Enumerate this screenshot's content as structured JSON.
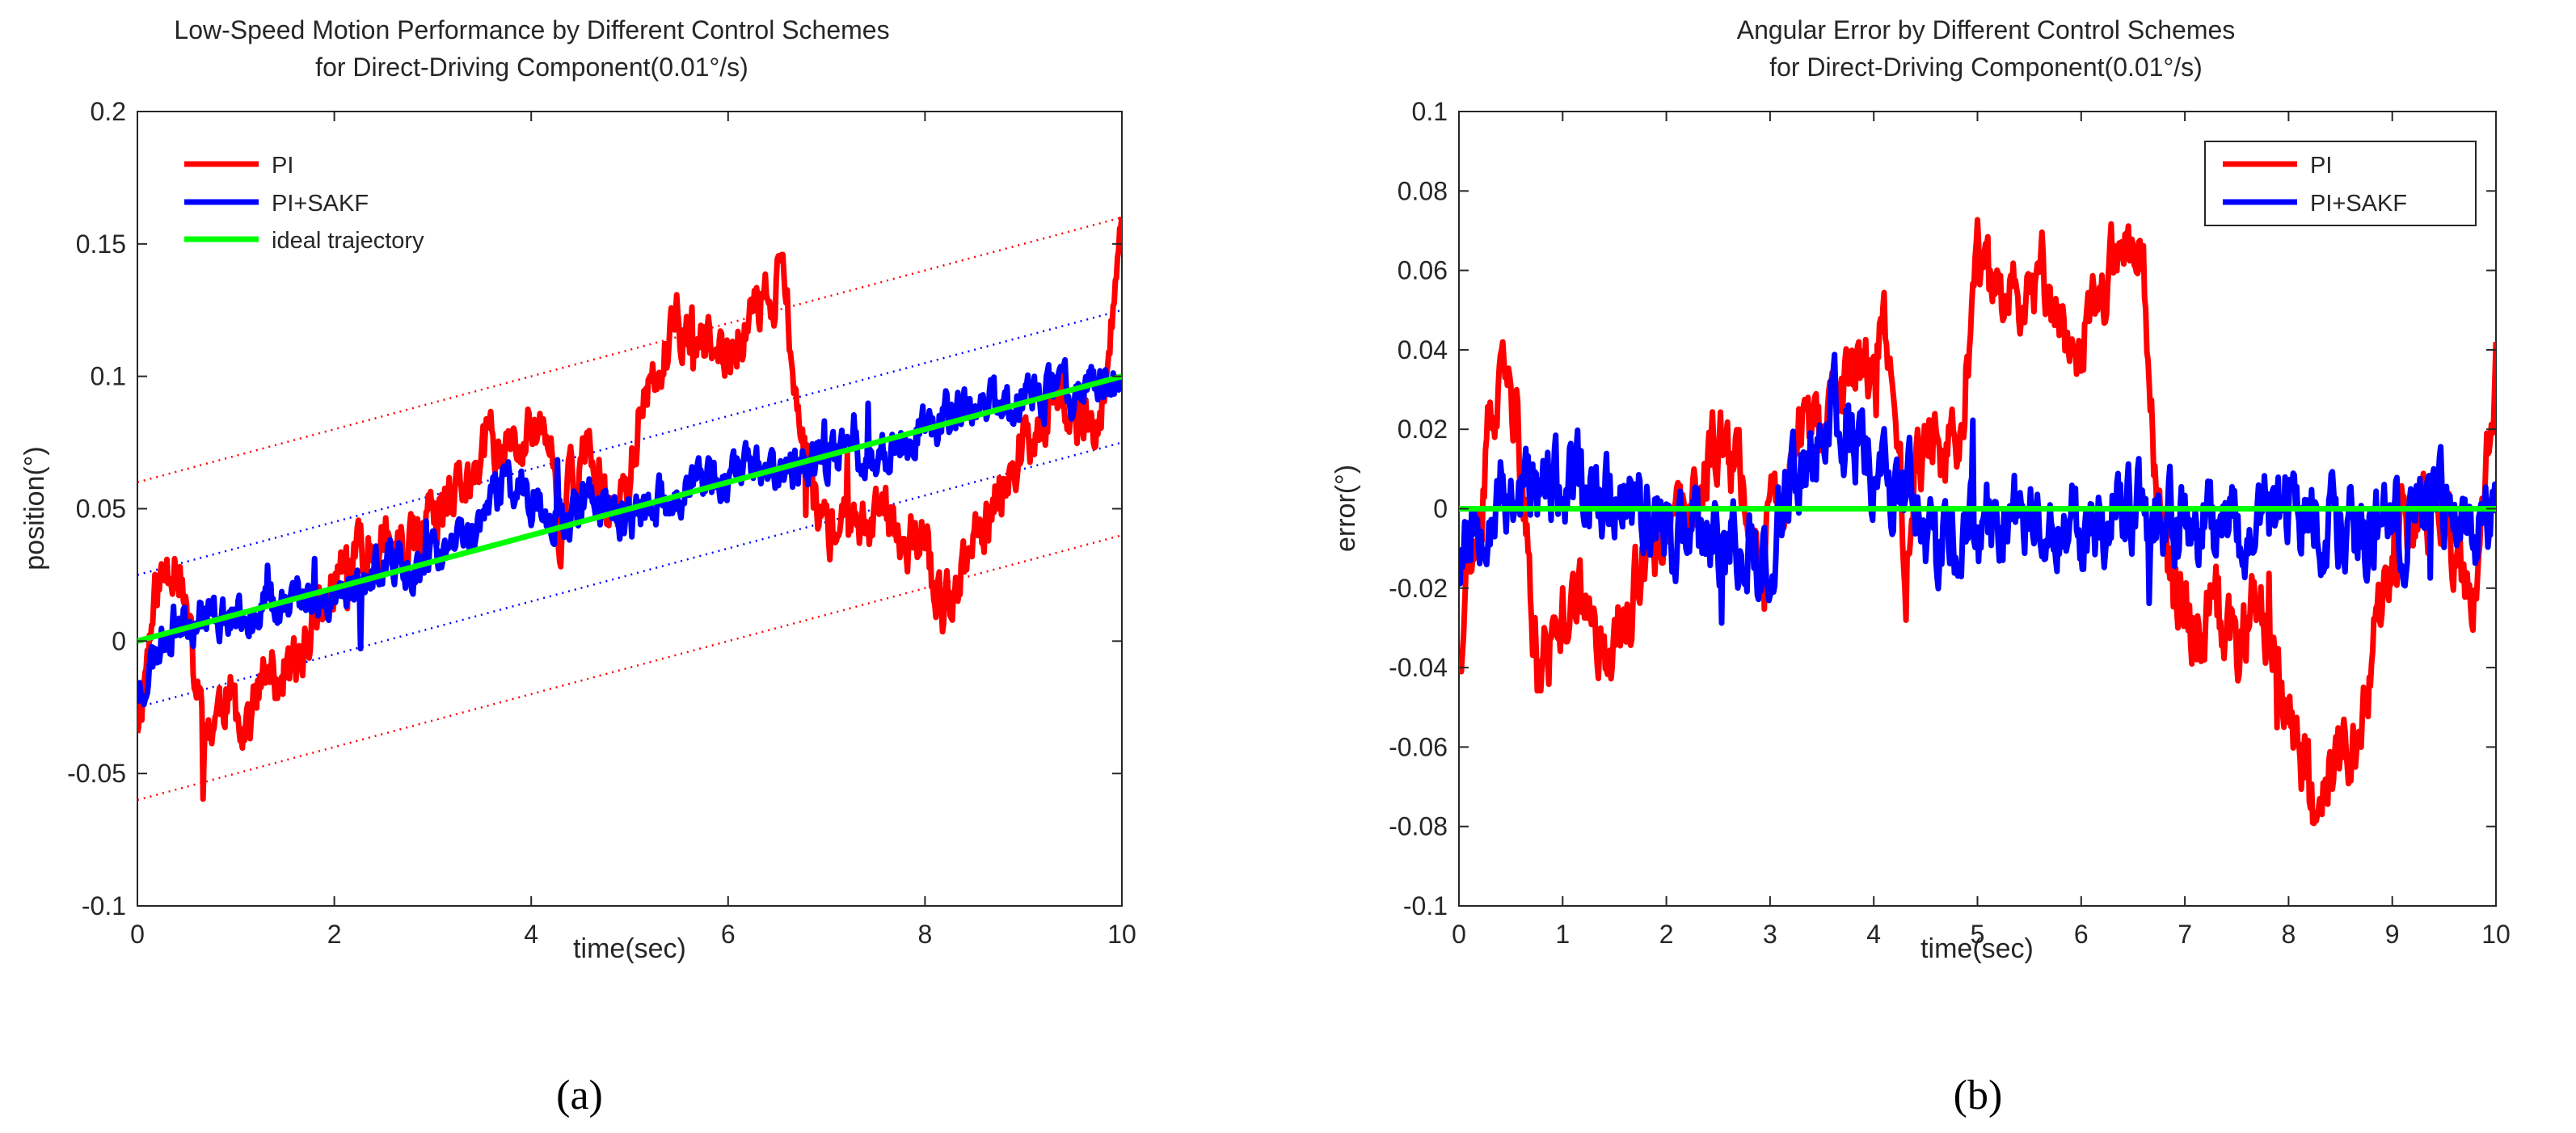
{
  "chart_data": [
    {
      "id": "a",
      "type": "line",
      "title_lines": [
        "Low-Speed Motion Performance by Different Control Schemes",
        "for Direct-Driving Component(0.01°/s)"
      ],
      "xlabel": "time(sec)",
      "ylabel": "position(°)",
      "xlim": [
        0,
        10
      ],
      "ylim": [
        -0.1,
        0.2
      ],
      "xticks": [
        0,
        2,
        4,
        6,
        8,
        10
      ],
      "xtick_labels": [
        "0",
        "2",
        "4",
        "6",
        "8",
        "10"
      ],
      "yticks": [
        -0.1,
        -0.05,
        0,
        0.05,
        0.1,
        0.15,
        0.2
      ],
      "ytick_labels": [
        "-0.1",
        "-0.05",
        "0",
        "0.05",
        "0.1",
        "0.15",
        "0.2"
      ],
      "legend_position": "top-left",
      "caption": "(a)",
      "series": [
        {
          "name": "PI",
          "color": "#ff0000",
          "noise": 0.009,
          "seed": 11,
          "x": [
            0,
            0.2,
            0.4,
            0.6,
            0.7,
            0.9,
            1.1,
            1.3,
            1.6,
            1.8,
            2.0,
            2.2,
            2.5,
            2.7,
            3.0,
            3.2,
            3.4,
            3.6,
            3.8,
            4.0,
            4.2,
            4.3,
            4.4,
            4.6,
            4.8,
            5.0,
            5.1,
            5.3,
            5.5,
            5.8,
            6.0,
            6.2,
            6.4,
            6.55,
            6.7,
            6.9,
            7.1,
            7.4,
            7.6,
            7.8,
            8.0,
            8.2,
            8.4,
            8.6,
            8.8,
            9.0,
            9.2,
            9.4,
            9.6,
            9.8,
            10.0
          ],
          "y": [
            -0.03,
            0.02,
            0.035,
            -0.02,
            -0.035,
            -0.02,
            -0.03,
            -0.015,
            -0.01,
            0.01,
            0.02,
            0.03,
            0.04,
            0.03,
            0.045,
            0.05,
            0.065,
            0.075,
            0.07,
            0.08,
            0.075,
            0.03,
            0.065,
            0.07,
            0.05,
            0.06,
            0.085,
            0.1,
            0.12,
            0.11,
            0.105,
            0.12,
            0.13,
            0.14,
            0.09,
            0.05,
            0.04,
            0.045,
            0.05,
            0.04,
            0.035,
            0.01,
            0.03,
            0.04,
            0.06,
            0.075,
            0.085,
            0.09,
            0.08,
            0.09,
            0.15
          ]
        },
        {
          "name": "PI+SAKF",
          "color": "#0000ff",
          "noise": 0.007,
          "seed": 23,
          "x": [
            0,
            0.3,
            0.6,
            1.0,
            1.4,
            1.8,
            2.2,
            2.6,
            3.0,
            3.4,
            3.7,
            4.0,
            4.3,
            4.6,
            5.0,
            5.4,
            5.8,
            6.2,
            6.6,
            7.0,
            7.4,
            7.8,
            8.2,
            8.6,
            9.0,
            9.4,
            9.8,
            10.0
          ],
          "y": [
            -0.02,
            0.005,
            0.01,
            0.01,
            0.015,
            0.015,
            0.02,
            0.03,
            0.03,
            0.04,
            0.06,
            0.055,
            0.045,
            0.055,
            0.045,
            0.055,
            0.06,
            0.065,
            0.065,
            0.07,
            0.07,
            0.075,
            0.085,
            0.09,
            0.09,
            0.095,
            0.1,
            0.09
          ]
        },
        {
          "name": "ideal trajectory",
          "color": "#00ff00",
          "noise": 0,
          "seed": 0,
          "x": [
            0,
            10
          ],
          "y": [
            0,
            0.1
          ]
        }
      ],
      "reference_lines": [
        {
          "color": "#ff0000",
          "x": [
            0,
            10
          ],
          "y": [
            0.06,
            0.16
          ]
        },
        {
          "color": "#ff0000",
          "x": [
            0,
            10
          ],
          "y": [
            -0.06,
            0.04
          ]
        },
        {
          "color": "#0000ff",
          "x": [
            0,
            10
          ],
          "y": [
            0.025,
            0.125
          ]
        },
        {
          "color": "#0000ff",
          "x": [
            0,
            10
          ],
          "y": [
            -0.025,
            0.075
          ]
        }
      ]
    },
    {
      "id": "b",
      "type": "line",
      "title_lines": [
        "Angular Error by Different Control Schemes",
        "for Direct-Driving Component(0.01°/s)"
      ],
      "xlabel": "time(sec)",
      "ylabel": "error(°)",
      "xlim": [
        0,
        10
      ],
      "ylim": [
        -0.1,
        0.1
      ],
      "xticks": [
        0,
        1,
        2,
        3,
        4,
        5,
        6,
        7,
        8,
        9,
        10
      ],
      "xtick_labels": [
        "0",
        "1",
        "2",
        "3",
        "4",
        "5",
        "6",
        "7",
        "8",
        "9",
        "10"
      ],
      "yticks": [
        -0.1,
        -0.08,
        -0.06,
        -0.04,
        -0.02,
        0,
        0.02,
        0.04,
        0.06,
        0.08,
        0.1
      ],
      "ytick_labels": [
        "-0.1",
        "-0.08",
        "-0.06",
        "-0.04",
        "-0.02",
        "0",
        "0.02",
        "0.04",
        "0.06",
        "0.08",
        "0.1"
      ],
      "legend_position": "top-right",
      "caption": "(b)",
      "series": [
        {
          "name": "PI",
          "color": "#ff0000",
          "noise": 0.008,
          "seed": 37,
          "x": [
            0,
            0.1,
            0.3,
            0.45,
            0.55,
            0.65,
            0.75,
            0.9,
            1.1,
            1.3,
            1.5,
            1.7,
            1.9,
            2.1,
            2.3,
            2.5,
            2.7,
            2.9,
            3.1,
            3.3,
            3.5,
            3.7,
            3.9,
            4.1,
            4.25,
            4.3,
            4.4,
            4.6,
            4.8,
            5.0,
            5.2,
            5.4,
            5.6,
            5.8,
            6.0,
            6.2,
            6.4,
            6.6,
            6.7,
            6.9,
            7.1,
            7.3,
            7.5,
            7.7,
            7.9,
            8.1,
            8.25,
            8.4,
            8.6,
            8.8,
            9.0,
            9.2,
            9.4,
            9.6,
            9.8,
            10.0
          ],
          "y": [
            -0.035,
            -0.01,
            0.02,
            0.03,
            0.025,
            -0.01,
            -0.04,
            -0.035,
            -0.02,
            -0.03,
            -0.035,
            -0.02,
            -0.01,
            -0.005,
            0,
            0.02,
            0.01,
            -0.01,
            0,
            0.02,
            0.015,
            0.03,
            0.035,
            0.045,
            0.02,
            -0.03,
            0.01,
            0.02,
            0.01,
            0.06,
            0.05,
            0.055,
            0.06,
            0.05,
            0.04,
            0.055,
            0.065,
            0.07,
            0.01,
            -0.02,
            -0.03,
            -0.025,
            -0.035,
            -0.02,
            -0.04,
            -0.06,
            -0.075,
            -0.065,
            -0.06,
            -0.04,
            -0.01,
            -0.005,
            0,
            -0.01,
            -0.025,
            0.04
          ]
        },
        {
          "name": "PI+SAKF",
          "color": "#0000ff",
          "noise": 0.009,
          "seed": 53,
          "x": [
            0,
            0.2,
            0.5,
            1.0,
            1.5,
            2.0,
            2.5,
            3.0,
            3.3,
            3.6,
            3.8,
            4.0,
            4.3,
            4.6,
            4.8,
            5.0,
            5.5,
            6.0,
            6.5,
            7.0,
            7.5,
            8.0,
            8.5,
            9.0,
            9.5,
            10.0
          ],
          "y": [
            -0.01,
            0,
            0.005,
            0.005,
            0.005,
            -0.005,
            -0.01,
            -0.01,
            0.01,
            0.025,
            0.02,
            0.01,
            0.005,
            -0.01,
            -0.01,
            -0.005,
            0,
            -0.005,
            0,
            -0.005,
            -0.005,
            0,
            -0.005,
            -0.005,
            0,
            -0.005
          ]
        },
        {
          "name": "",
          "color": "#00ff00",
          "noise": 0,
          "seed": 0,
          "x": [
            0,
            10
          ],
          "y": [
            0,
            0
          ]
        }
      ],
      "reference_lines": []
    }
  ]
}
